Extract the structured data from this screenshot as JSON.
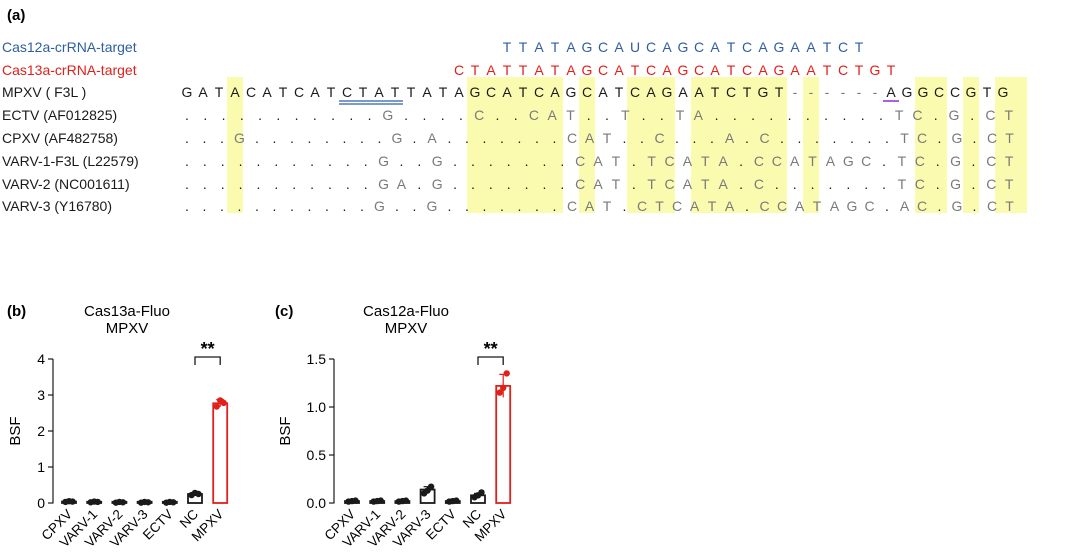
{
  "panel_a": {
    "letter": "(a)",
    "rows": [
      {
        "label": "Cas12a-crRNA-target",
        "color": "#2e5f9e",
        "seq": "                    TTATAGCAUCAGCATCAGAATCT      "
      },
      {
        "label": "Cas13a-crRNA-target",
        "color": "#e0201b",
        "seq": "                 CTATTATAGCATCAGCATCAGAATCTGT    "
      },
      {
        "label": "MPXV ( F3L )",
        "color": "#1a1a1a",
        "seq": "GATACATCATCTATTATAGCATCAGCATCAGAATCTGT------AGGCCGTG"
      },
      {
        "label": "ECTV (AF012825)",
        "color": "#1a1a1a",
        "seq": "...........G....C..CAT..T..TA..........TC.G.CT"
      },
      {
        "label": "CPXV (AF482758)",
        "color": "#1a1a1a",
        "seq": "...G........G.A.......CAT..C...A.C.......TC.G.CT"
      },
      {
        "label": "VARV-1-F3L (L22579)",
        "color": "#1a1a1a",
        "seq": "...........G..G.......CAT.TCATA.CCATAGC.TC.G.CT"
      },
      {
        "label": "VARV-2 (NC001611)",
        "color": "#1a1a1a",
        "seq": "...........GA.G.......CAT.TCATA.C.......TC.G.CT"
      },
      {
        "label": "VARV-3 (Y16780)",
        "color": "#1a1a1a",
        "seq": "...........G..G.......CAT.CTCATA.CCATAGC.AC.G.CT"
      }
    ]
  },
  "chart_data": [
    {
      "type": "bar",
      "panel": "(b)",
      "title": "Cas13a-Fluo",
      "subtitle": "MPXV",
      "ylabel": "BSF",
      "xlabel": "",
      "ylim": [
        0,
        4
      ],
      "yticks": [
        "0",
        "1",
        "2",
        "3",
        "4"
      ],
      "categories": [
        "CPXV",
        "VARV-1",
        "VARV-2",
        "VARV-3",
        "ECTV",
        "NC",
        "MPXV"
      ],
      "values": [
        0.04,
        0.03,
        0.02,
        0.02,
        0.02,
        0.25,
        2.77
      ],
      "errors": [
        0.01,
        0.01,
        0.01,
        0.01,
        0.01,
        0.03,
        0.1
      ],
      "points": [
        [
          0.03,
          0.05,
          0.04
        ],
        [
          0.02,
          0.04,
          0.03
        ],
        [
          0.01,
          0.03,
          0.02
        ],
        [
          0.01,
          0.03,
          0.02
        ],
        [
          0.01,
          0.03,
          0.02
        ],
        [
          0.22,
          0.28,
          0.25
        ],
        [
          2.68,
          2.85,
          2.78
        ]
      ],
      "bar_colors": [
        "#1a1a1a",
        "#1a1a1a",
        "#1a1a1a",
        "#1a1a1a",
        "#1a1a1a",
        "#1a1a1a",
        "#e0201b"
      ],
      "significance": {
        "between": [
          "NC",
          "MPXV"
        ],
        "label": "**"
      }
    },
    {
      "type": "bar",
      "panel": "(c)",
      "title": "Cas12a-Fluo",
      "subtitle": "MPXV",
      "ylabel": "BSF",
      "xlabel": "",
      "ylim": [
        0,
        1.5
      ],
      "yticks": [
        "0.0",
        "0.5",
        "1.0",
        "1.5"
      ],
      "categories": [
        "CPXV",
        "VARV-1",
        "VARV-2",
        "VARV-3",
        "ECTV",
        "NC",
        "MPXV"
      ],
      "values": [
        0.02,
        0.02,
        0.02,
        0.14,
        0.02,
        0.08,
        1.22
      ],
      "errors": [
        0.005,
        0.005,
        0.005,
        0.03,
        0.005,
        0.02,
        0.12
      ],
      "points": [
        [
          0.015,
          0.02,
          0.025
        ],
        [
          0.015,
          0.02,
          0.025
        ],
        [
          0.015,
          0.02,
          0.025
        ],
        [
          0.1,
          0.13,
          0.17
        ],
        [
          0.015,
          0.02,
          0.025
        ],
        [
          0.06,
          0.08,
          0.11
        ],
        [
          1.15,
          1.2,
          1.35
        ]
      ],
      "bar_colors": [
        "#1a1a1a",
        "#1a1a1a",
        "#1a1a1a",
        "#1a1a1a",
        "#1a1a1a",
        "#1a1a1a",
        "#e0201b"
      ],
      "significance": {
        "between": [
          "NC",
          "MPXV"
        ],
        "label": "**"
      }
    }
  ],
  "colors": {
    "highlight": "#fbfbb0",
    "mismatch": "#7a7a7a",
    "accent_red": "#e0201b",
    "accent_blue": "#2e5f9e",
    "underline_blue": "#2a5db0",
    "underline_purple": "#8a2be2"
  }
}
